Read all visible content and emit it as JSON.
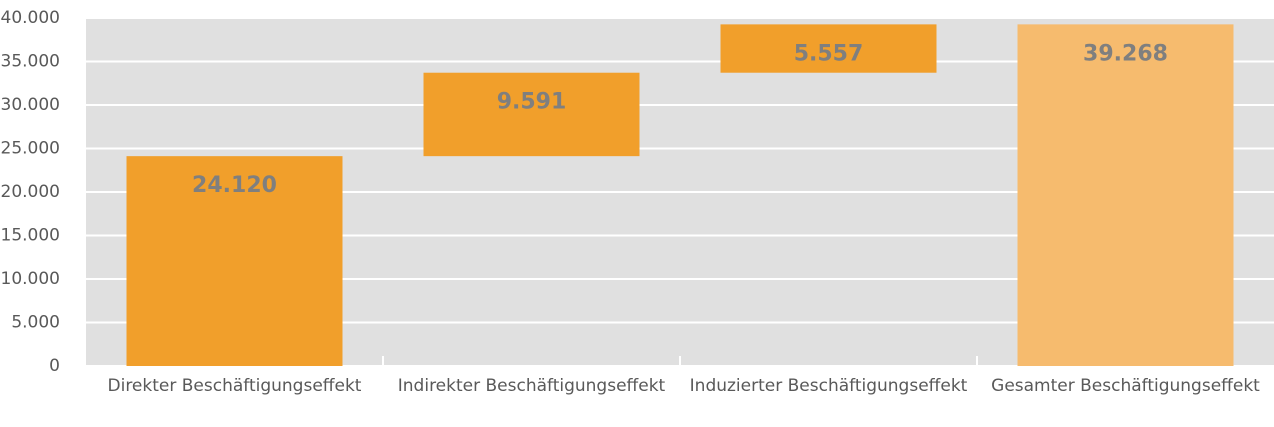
{
  "chart_data": {
    "type": "waterfall",
    "categories": [
      "Direkter Beschäftigungseffekt",
      "Indirekter Beschäftigungseffekt",
      "Induzierter Beschäftigungseffekt",
      "Gesamter Beschäftigungseffekt"
    ],
    "values": [
      24120,
      9591,
      5557,
      39268
    ],
    "value_labels": [
      "24.120",
      "9.591",
      "5.557",
      "39.268"
    ],
    "measure": [
      "relative",
      "relative",
      "relative",
      "total"
    ],
    "colors": [
      "#f19f2b",
      "#f19f2b",
      "#f19f2b",
      "#f6bb6e"
    ],
    "ylim": [
      0,
      40000
    ],
    "yticks": [
      0,
      {
        "value": 5000,
        "label": "5.000"
      },
      {
        "value": 10000,
        "label": "10.000"
      },
      {
        "value": 15000,
        "label": "15.000"
      },
      {
        "value": 20000,
        "label": "20.000"
      },
      {
        "value": 25000,
        "label": "25.000"
      },
      {
        "value": 30000,
        "label": "30.000"
      },
      {
        "value": 35000,
        "label": "35.000"
      },
      {
        "value": 40000,
        "label": "40.000"
      }
    ],
    "grid": true
  }
}
